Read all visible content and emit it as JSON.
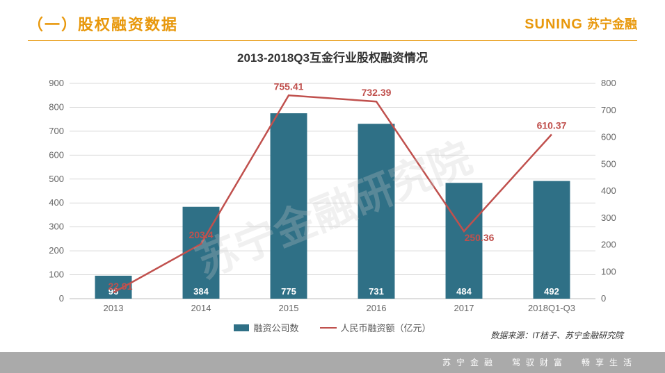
{
  "header": {
    "section_title": "（一）股权融资数据",
    "brand_en": "SUNING",
    "brand_cn": "苏宁金融"
  },
  "chart": {
    "type": "bar+line",
    "title": "2013-2018Q3互金行业股权融资情况",
    "categories": [
      "2013",
      "2014",
      "2015",
      "2016",
      "2017",
      "2018Q1-Q3"
    ],
    "bar_series": {
      "name": "融资公司数",
      "values": [
        96,
        384,
        775,
        731,
        484,
        492
      ],
      "color": "#2f7086",
      "axis": "left"
    },
    "line_series": {
      "name": "人民币融资额（亿元）",
      "values": [
        22.91,
        203.4,
        755.41,
        732.39,
        250.36,
        610.37
      ],
      "color": "#c0504d",
      "axis": "right",
      "line_width": 2.5
    },
    "left_axis": {
      "min": 0,
      "max": 900,
      "step": 100
    },
    "right_axis": {
      "min": 0,
      "max": 800,
      "step": 100
    },
    "bar_width_ratio": 0.42,
    "grid_color": "#d9d9d9",
    "background_color": "#ffffff",
    "axis_label_fontsize": 13,
    "title_fontsize": 17,
    "watermark": "苏宁金融研究院"
  },
  "source": "数据来源：IT桔子、苏宁金融研究院",
  "footer": "苏宁金融　驾驭财富　畅享生活"
}
